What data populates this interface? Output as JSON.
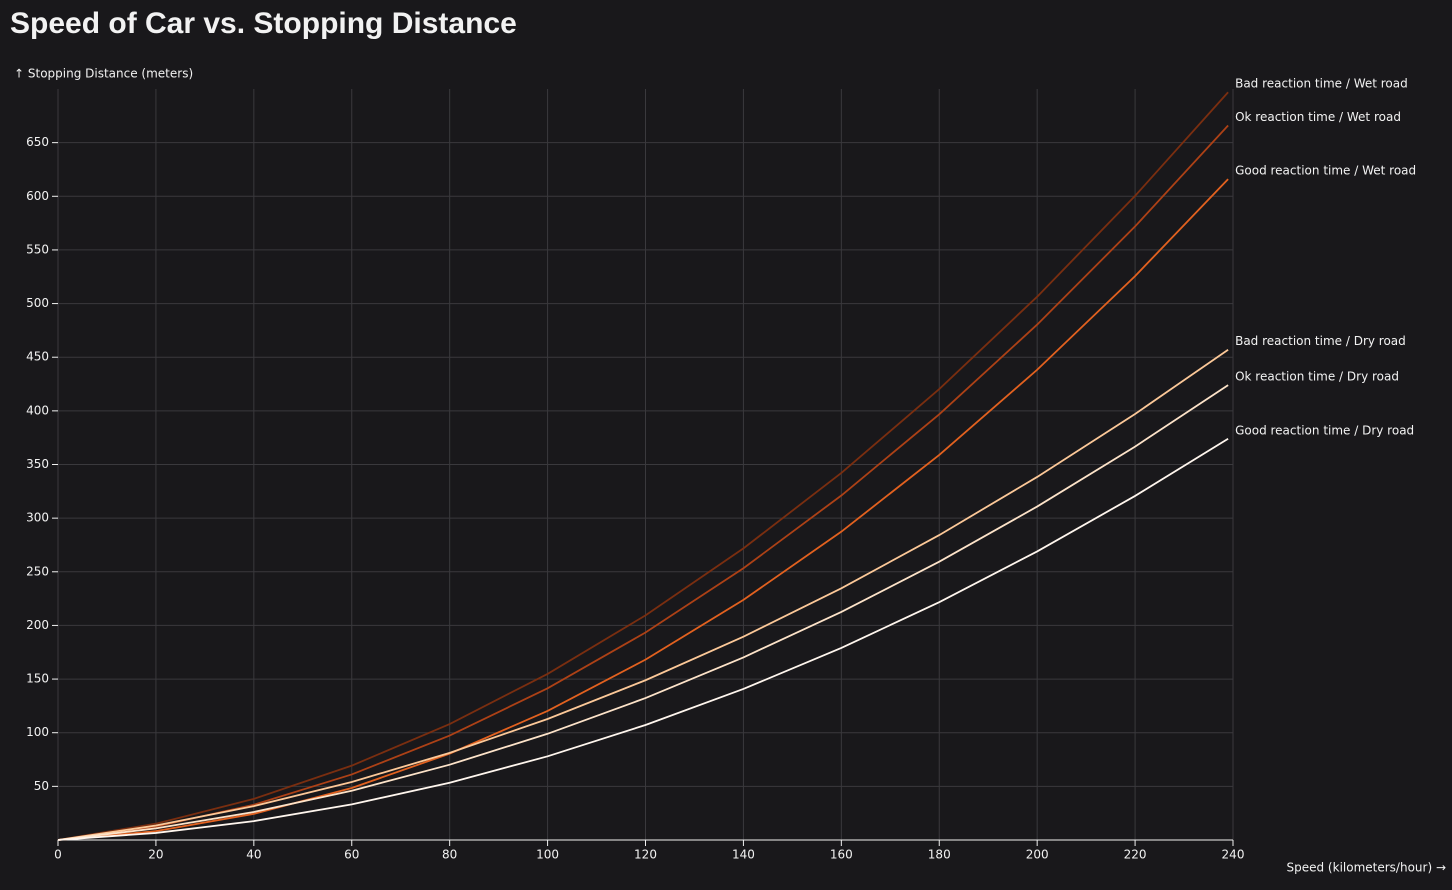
{
  "chart_data": {
    "type": "line",
    "title": "Speed of Car vs. Stopping Distance",
    "x_label": "Speed (kilometers/hour) →",
    "y_label": "↑ Stopping Distance (meters)",
    "x": [
      0,
      20,
      40,
      60,
      80,
      100,
      120,
      140,
      160,
      180,
      200,
      220,
      239
    ],
    "xlim": [
      0,
      240
    ],
    "xticks": [
      0,
      20,
      40,
      60,
      80,
      100,
      120,
      140,
      160,
      180,
      200,
      220,
      240
    ],
    "ylim": [
      0,
      700
    ],
    "yticks": [
      50,
      100,
      150,
      200,
      250,
      300,
      350,
      400,
      450,
      500,
      550,
      600,
      650
    ],
    "grid": true,
    "series": [
      {
        "name": "Bad reaction time / Wet road",
        "color": "#7a2e10",
        "values": [
          0,
          15.2,
          38.3,
          69.3,
          108.1,
          154.8,
          209.4,
          271.8,
          342.1,
          420.3,
          506.4,
          600.4,
          697
        ]
      },
      {
        "name": "Ok reaction time / Wet road",
        "color": "#ad4116",
        "values": [
          0,
          12.5,
          32.9,
          61.1,
          97.3,
          141.4,
          193.4,
          253.3,
          321.1,
          396.8,
          480.4,
          571.9,
          666
        ]
      },
      {
        "name": "Good reaction time / Wet road",
        "color": "#e2611f",
        "values": [
          0,
          8.3,
          24.4,
          48.5,
          80.5,
          120.3,
          168.1,
          223.8,
          287.4,
          358.9,
          438.3,
          525.6,
          616
        ]
      },
      {
        "name": "Bad reaction time / Dry road",
        "color": "#fcc898",
        "values": [
          0,
          13.5,
          31.6,
          54.1,
          81.2,
          112.8,
          148.9,
          189.5,
          234.6,
          284.2,
          338.4,
          397.1,
          457
        ]
      },
      {
        "name": "Ok reaction time / Dry road",
        "color": "#fde3c9",
        "values": [
          0,
          10.8,
          26.1,
          45.9,
          70.2,
          99,
          132.3,
          170.2,
          212.6,
          259.4,
          310.8,
          366.7,
          424
        ]
      },
      {
        "name": "Good reaction time / Dry road",
        "color": "#fff6ee",
        "values": [
          0,
          6.6,
          17.6,
          33.2,
          53.4,
          78,
          107.2,
          140.8,
          179,
          221.7,
          269,
          320.7,
          374
        ]
      }
    ]
  }
}
